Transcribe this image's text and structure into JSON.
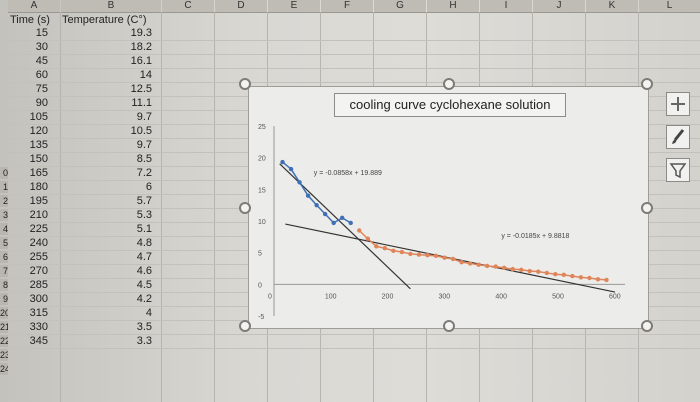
{
  "columns": [
    "A",
    "B",
    "C",
    "D",
    "E",
    "F",
    "G",
    "H",
    "I",
    "J",
    "K",
    "L"
  ],
  "row_numbers": [
    "0",
    "1",
    "2",
    "3",
    "4",
    "5",
    "6",
    "7",
    "8",
    "9",
    "20",
    "21",
    "22",
    "23",
    "24"
  ],
  "headers": {
    "time": "Time (s)",
    "temperature": "Temperature (C°)"
  },
  "table": [
    [
      "15",
      "19.3"
    ],
    [
      "30",
      "18.2"
    ],
    [
      "45",
      "16.1"
    ],
    [
      "60",
      "14"
    ],
    [
      "75",
      "12.5"
    ],
    [
      "90",
      "11.1"
    ],
    [
      "105",
      "9.7"
    ],
    [
      "120",
      "10.5"
    ],
    [
      "135",
      "9.7"
    ],
    [
      "150",
      "8.5"
    ],
    [
      "165",
      "7.2"
    ],
    [
      "180",
      "6"
    ],
    [
      "195",
      "5.7"
    ],
    [
      "210",
      "5.3"
    ],
    [
      "225",
      "5.1"
    ],
    [
      "240",
      "4.8"
    ],
    [
      "255",
      "4.7"
    ],
    [
      "270",
      "4.6"
    ],
    [
      "285",
      "4.5"
    ],
    [
      "300",
      "4.2"
    ],
    [
      "315",
      "4"
    ],
    [
      "330",
      "3.5"
    ],
    [
      "345",
      "3.3"
    ]
  ],
  "chart_data": {
    "type": "scatter",
    "title": "cooling curve cyclohexane solution",
    "xlim": [
      0,
      600
    ],
    "ylim": [
      -5,
      25
    ],
    "xticks": [
      "0",
      "100",
      "200",
      "300",
      "400",
      "500",
      "600"
    ],
    "yticks": [
      "-5",
      "0",
      "5",
      "10",
      "15",
      "20",
      "25"
    ],
    "grid": false,
    "series": [
      {
        "color": "#3f6fb5",
        "x": [
          15,
          30,
          45,
          60,
          75,
          90,
          105,
          120,
          135
        ],
        "y": [
          19.3,
          18.2,
          16.1,
          14,
          12.5,
          11.1,
          9.7,
          10.5,
          9.7
        ]
      },
      {
        "color": "#e0845a",
        "x": [
          150,
          165,
          180,
          195,
          210,
          225,
          240,
          255,
          270,
          285,
          300,
          315,
          330,
          345,
          360,
          375,
          390,
          405,
          420,
          435,
          450,
          465,
          480,
          495,
          510,
          525,
          540,
          555,
          570,
          585
        ],
        "y": [
          8.5,
          7.2,
          6.0,
          5.7,
          5.3,
          5.1,
          4.8,
          4.7,
          4.6,
          4.5,
          4.2,
          4.0,
          3.5,
          3.3,
          3.1,
          2.9,
          2.8,
          2.6,
          2.4,
          2.3,
          2.1,
          2.0,
          1.8,
          1.6,
          1.5,
          1.3,
          1.1,
          1.0,
          0.8,
          0.7
        ]
      }
    ],
    "trendlines": [
      {
        "label": "y = -0.0858x + 19.889",
        "slope": -0.0858,
        "intercept": 19.889,
        "x_from": 10,
        "x_to": 240
      },
      {
        "label": "y = -0.0185x + 9.8818",
        "slope": -0.0185,
        "intercept": 9.8818,
        "x_from": 20,
        "x_to": 600
      }
    ]
  },
  "icons": {
    "plus": "plus-icon",
    "brush": "brush-icon",
    "filter": "filter-icon"
  }
}
